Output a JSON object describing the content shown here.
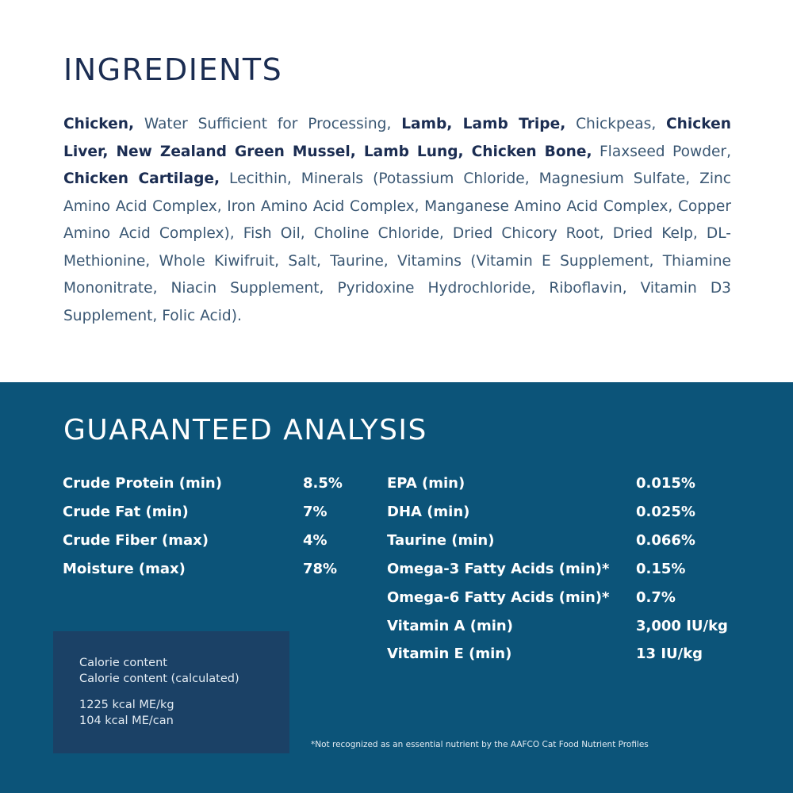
{
  "ingredients": {
    "heading": "INGREDIENTS",
    "segments": [
      {
        "text": "Chicken,",
        "bold": true
      },
      {
        "text": " Water Sufficient for Processing, ",
        "bold": false
      },
      {
        "text": "Lamb, Lamb Tripe,",
        "bold": true
      },
      {
        "text": " Chickpeas, ",
        "bold": false
      },
      {
        "text": "Chicken Liver, New Zealand Green Mussel, Lamb Lung, Chicken Bone,",
        "bold": true
      },
      {
        "text": " Flaxseed Powder, ",
        "bold": false
      },
      {
        "text": "Chicken Cartilage,",
        "bold": true
      },
      {
        "text": " Lecithin, Minerals (Potassium Chloride, Magnesium Sulfate, Zinc Amino Acid Complex, Iron Amino Acid Complex, Manganese Amino Acid Complex, Copper Amino Acid Complex), Fish Oil, Choline Chloride, Dried Chicory Root, Dried Kelp, DL-Methionine, Whole Kiwifruit, Salt, Taurine, Vitamins (Vitamin E Supplement, Thiamine Mononitrate, Niacin Supplement, Pyridoxine Hydrochloride, Riboflavin, Vitamin D3 Supplement, Folic Acid).",
        "bold": false
      }
    ]
  },
  "analysis": {
    "heading": "GUARANTEED ANALYSIS",
    "left": [
      {
        "label": "Crude Protein (min)",
        "value": "8.5%"
      },
      {
        "label": "Crude Fat (min)",
        "value": "7%"
      },
      {
        "label": "Crude Fiber (max)",
        "value": "4%"
      },
      {
        "label": "Moisture (max)",
        "value": "78%"
      }
    ],
    "right": [
      {
        "label": "EPA (min)",
        "value": "0.015%"
      },
      {
        "label": "DHA (min)",
        "value": "0.025%"
      },
      {
        "label": "Taurine (min)",
        "value": "0.066%"
      },
      {
        "label": "Omega-3 Fatty Acids (min)*",
        "value": "0.15%"
      },
      {
        "label": "Omega-6 Fatty Acids (min)*",
        "value": "0.7%"
      },
      {
        "label": "Vitamin A (min)",
        "value": "3,000 IU/kg"
      },
      {
        "label": "Vitamin E (min)",
        "value": "13 IU/kg"
      }
    ],
    "calorie": {
      "line1": "Calorie content",
      "line2": "Calorie content (calculated)",
      "line3": "1225 kcal ME/kg",
      "line4": "104 kcal ME/can"
    },
    "footnote": "*Not recognized as an essential nutrient by the AAFCO Cat Food Nutrient Profiles"
  }
}
